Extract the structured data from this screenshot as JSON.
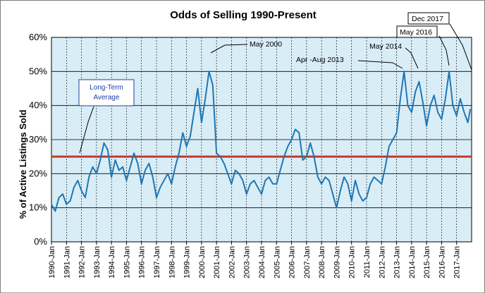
{
  "chart_data": {
    "type": "line",
    "title": "Odds of Selling 1990-Present",
    "ylabel": "% of Active Listings Sold",
    "xlabel": "",
    "ylim": [
      0,
      60
    ],
    "yticks": [
      "0%",
      "10%",
      "20%",
      "30%",
      "40%",
      "50%",
      "60%"
    ],
    "x_ticks": [
      "1990-Jan",
      "1991-Jan",
      "1992-Jan",
      "1993-Jan",
      "1994-Jan",
      "1995-Jan",
      "1996-Jan",
      "1997-Jan",
      "1998-Jan",
      "1999-Jan",
      "2000-Jan",
      "2001-Jan",
      "2002-Jan",
      "2003-Jan",
      "2004-Jan",
      "2005-Jan",
      "2006-Jan",
      "2007-Jan",
      "2008-Jan",
      "2009-Jan",
      "2010-Jan",
      "2011-Jan",
      "2012-Jan",
      "2013-Jan",
      "2014-Jan",
      "2015-Jan",
      "2016-Jan",
      "2017-Jan"
    ],
    "grid": true,
    "plot_background": "#d9edf7",
    "line_color": "#1f77b4",
    "reference_line": {
      "value": 25,
      "color": "#c0392b"
    },
    "series": [
      {
        "points": [
          [
            "1990-01",
            11
          ],
          [
            "1990-04",
            9
          ],
          [
            "1990-07",
            13
          ],
          [
            "1990-10",
            14
          ],
          [
            "1991-01",
            11
          ],
          [
            "1991-04",
            12
          ],
          [
            "1991-07",
            16
          ],
          [
            "1991-10",
            18
          ],
          [
            "1992-01",
            15
          ],
          [
            "1992-04",
            13
          ],
          [
            "1992-07",
            19
          ],
          [
            "1992-10",
            22
          ],
          [
            "1993-01",
            20
          ],
          [
            "1993-04",
            24
          ],
          [
            "1993-07",
            29
          ],
          [
            "1993-10",
            27
          ],
          [
            "1994-01",
            19
          ],
          [
            "1994-04",
            24
          ],
          [
            "1994-07",
            21
          ],
          [
            "1994-10",
            22
          ],
          [
            "1995-01",
            18
          ],
          [
            "1995-04",
            22
          ],
          [
            "1995-07",
            26
          ],
          [
            "1995-10",
            23
          ],
          [
            "1996-01",
            17
          ],
          [
            "1996-04",
            21
          ],
          [
            "1996-07",
            23
          ],
          [
            "1996-10",
            19
          ],
          [
            "1997-01",
            13
          ],
          [
            "1997-04",
            16
          ],
          [
            "1997-07",
            18
          ],
          [
            "1997-10",
            20
          ],
          [
            "1998-01",
            17
          ],
          [
            "1998-04",
            22
          ],
          [
            "1998-07",
            26
          ],
          [
            "1998-10",
            32
          ],
          [
            "1999-01",
            28
          ],
          [
            "1999-04",
            31
          ],
          [
            "1999-07",
            38
          ],
          [
            "1999-10",
            45
          ],
          [
            "2000-01",
            35
          ],
          [
            "2000-04",
            42
          ],
          [
            "2000-07",
            50
          ],
          [
            "2000-10",
            46
          ],
          [
            "2001-01",
            26
          ],
          [
            "2001-04",
            25
          ],
          [
            "2001-07",
            23
          ],
          [
            "2001-10",
            20
          ],
          [
            "2002-01",
            17
          ],
          [
            "2002-04",
            21
          ],
          [
            "2002-07",
            20
          ],
          [
            "2002-10",
            18
          ],
          [
            "2003-01",
            14
          ],
          [
            "2003-04",
            17
          ],
          [
            "2003-07",
            18
          ],
          [
            "2003-10",
            16
          ],
          [
            "2004-01",
            14
          ],
          [
            "2004-04",
            18
          ],
          [
            "2004-07",
            19
          ],
          [
            "2004-10",
            17
          ],
          [
            "2005-01",
            17
          ],
          [
            "2005-04",
            21
          ],
          [
            "2005-07",
            25
          ],
          [
            "2005-10",
            28
          ],
          [
            "2006-01",
            30
          ],
          [
            "2006-04",
            33
          ],
          [
            "2006-07",
            32
          ],
          [
            "2006-10",
            24
          ],
          [
            "2007-01",
            25
          ],
          [
            "2007-04",
            29
          ],
          [
            "2007-07",
            25
          ],
          [
            "2007-10",
            19
          ],
          [
            "2008-01",
            17
          ],
          [
            "2008-04",
            19
          ],
          [
            "2008-07",
            18
          ],
          [
            "2008-10",
            14
          ],
          [
            "2009-01",
            10
          ],
          [
            "2009-04",
            15
          ],
          [
            "2009-07",
            19
          ],
          [
            "2009-10",
            17
          ],
          [
            "2010-01",
            12
          ],
          [
            "2010-04",
            18
          ],
          [
            "2010-07",
            14
          ],
          [
            "2010-10",
            12
          ],
          [
            "2011-01",
            13
          ],
          [
            "2011-04",
            17
          ],
          [
            "2011-07",
            19
          ],
          [
            "2011-10",
            18
          ],
          [
            "2012-01",
            17
          ],
          [
            "2012-04",
            22
          ],
          [
            "2012-07",
            28
          ],
          [
            "2012-10",
            30
          ],
          [
            "2013-01",
            32
          ],
          [
            "2013-04",
            42
          ],
          [
            "2013-07",
            50
          ],
          [
            "2013-10",
            40
          ],
          [
            "2014-01",
            38
          ],
          [
            "2014-04",
            44
          ],
          [
            "2014-07",
            47
          ],
          [
            "2014-10",
            41
          ],
          [
            "2015-01",
            34
          ],
          [
            "2015-04",
            40
          ],
          [
            "2015-07",
            43
          ],
          [
            "2015-10",
            38
          ],
          [
            "2016-01",
            36
          ],
          [
            "2016-04",
            42
          ],
          [
            "2016-07",
            50
          ],
          [
            "2016-10",
            40
          ],
          [
            "2017-01",
            37
          ],
          [
            "2017-04",
            42
          ],
          [
            "2017-07",
            38
          ],
          [
            "2017-10",
            35
          ],
          [
            "2017-12",
            39
          ]
        ]
      }
    ],
    "annotations": [
      {
        "text": "May 2000",
        "boxed": false
      },
      {
        "text": "Apr -Aug 2013",
        "boxed": false
      },
      {
        "text": "May 2014",
        "boxed": false
      },
      {
        "text": "May 2016",
        "boxed": true
      },
      {
        "text": "Dec 2017",
        "boxed": true
      },
      {
        "text_lines": [
          "Long-Term",
          "Average"
        ],
        "boxed": true,
        "color": "#1f3f9f"
      }
    ]
  }
}
